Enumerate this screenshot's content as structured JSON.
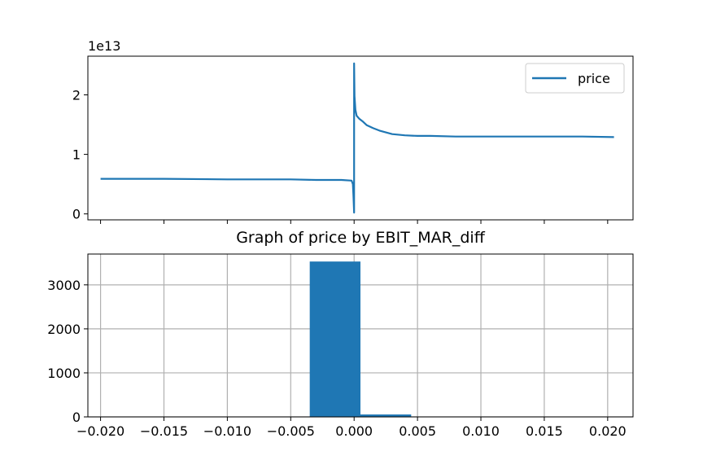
{
  "colors": {
    "series": "#1f77b4",
    "grid": "#b0b0b0",
    "axes": "#000000"
  },
  "chart_data": [
    {
      "type": "line",
      "title": "",
      "xlabel": "",
      "ylabel": "",
      "offset_label": "1e13",
      "xlim": [
        -0.021,
        0.022
      ],
      "ylim": [
        -0.1,
        2.65
      ],
      "yticks": [
        0,
        1,
        2
      ],
      "ytick_labels": [
        "0",
        "1",
        "2"
      ],
      "xticks": [
        -0.02,
        -0.015,
        -0.01,
        -0.005,
        0.0,
        0.005,
        0.01,
        0.015,
        0.02
      ],
      "xtick_labels_visible": false,
      "legend": {
        "position": "upper right",
        "entries": [
          "price"
        ]
      },
      "grid": false,
      "series": [
        {
          "name": "price",
          "color": "#1f77b4",
          "x": [
            -0.02,
            -0.015,
            -0.01,
            -0.005,
            -0.003,
            -0.001,
            -0.0002,
            -0.0001,
            -5e-05,
            0.0,
            0.0,
            3e-05,
            0.0001,
            0.0002,
            0.0004,
            0.0007,
            0.001,
            0.0015,
            0.002,
            0.003,
            0.004,
            0.005,
            0.006,
            0.008,
            0.01,
            0.012,
            0.015,
            0.018,
            0.0205
          ],
          "y": [
            0.59,
            0.59,
            0.58,
            0.58,
            0.57,
            0.57,
            0.56,
            0.5,
            0.3,
            0.02,
            2.53,
            1.98,
            1.75,
            1.65,
            1.6,
            1.55,
            1.49,
            1.44,
            1.4,
            1.34,
            1.32,
            1.31,
            1.31,
            1.3,
            1.3,
            1.3,
            1.3,
            1.3,
            1.29
          ]
        }
      ]
    },
    {
      "type": "bar",
      "title": "Graph of price by EBIT_MAR_diff",
      "xlabel": "",
      "ylabel": "",
      "xlim": [
        -0.021,
        0.022
      ],
      "ylim": [
        0,
        3700
      ],
      "yticks": [
        0,
        1000,
        2000,
        3000
      ],
      "ytick_labels": [
        "0",
        "1000",
        "2000",
        "3000"
      ],
      "xticks": [
        -0.02,
        -0.015,
        -0.01,
        -0.005,
        0.0,
        0.005,
        0.01,
        0.015,
        0.02
      ],
      "xtick_labels": [
        "−0.020",
        "−0.015",
        "−0.010",
        "−0.005",
        "0.000",
        "0.005",
        "0.010",
        "0.015",
        "0.020"
      ],
      "grid": true,
      "bars": [
        {
          "x0": -0.0035,
          "x1": 0.0005,
          "value": 3530
        },
        {
          "x0": 0.0005,
          "x1": 0.0045,
          "value": 55
        }
      ]
    }
  ]
}
